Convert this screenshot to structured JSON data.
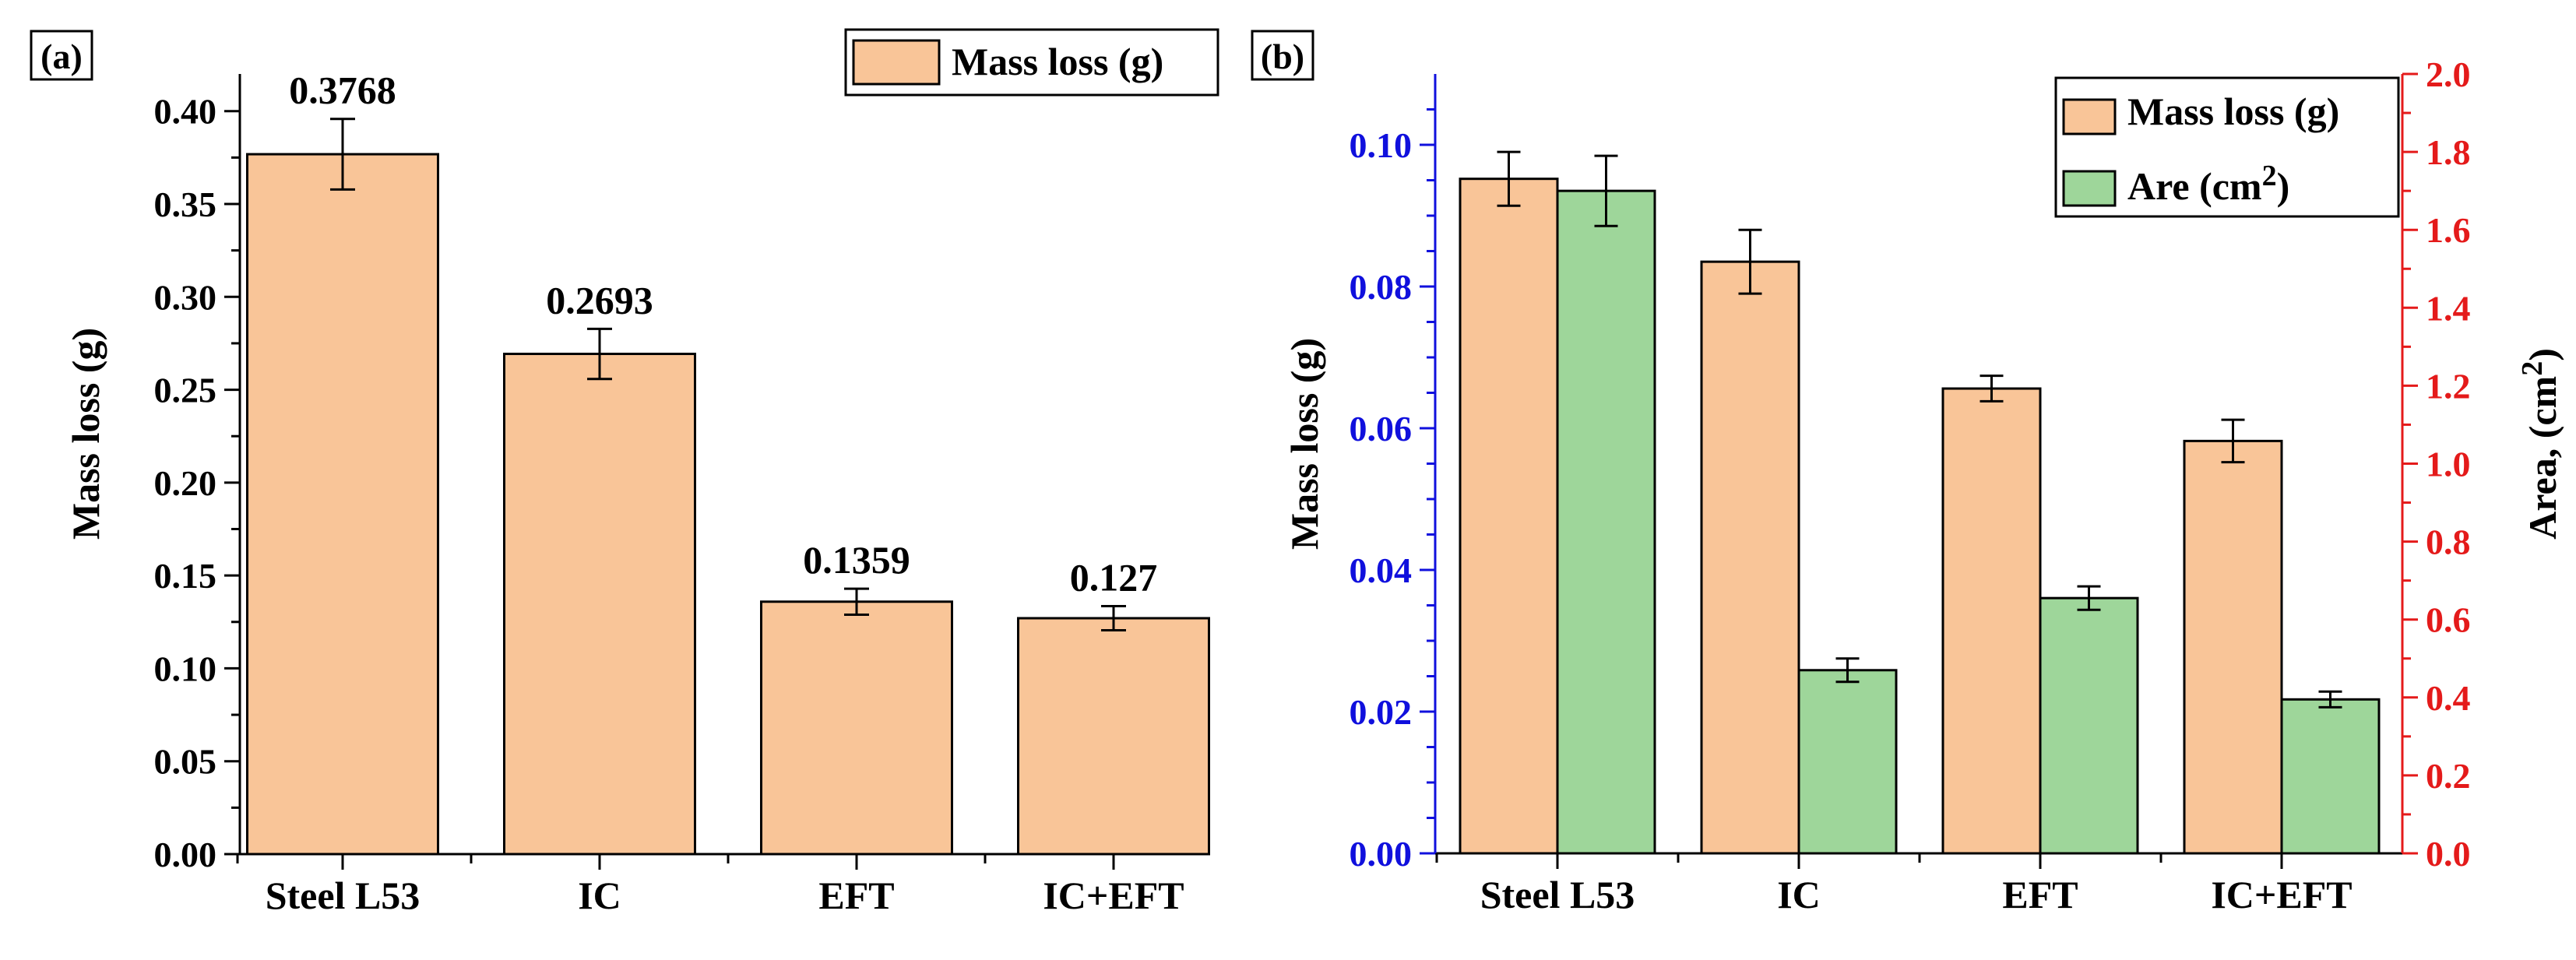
{
  "colors": {
    "mass_fill": "#F9C598",
    "area_fill": "#9ED69A",
    "left_axis_b": "#1010DD",
    "right_axis_b": "#E41A1A",
    "axis_black": "#000000"
  },
  "chart_data": [
    {
      "panel_label": "(a)",
      "type": "bar",
      "categories": [
        "Steel L53",
        "IC",
        "EFT",
        "IC+EFT"
      ],
      "series": [
        {
          "name": "Mass loss (g)",
          "values": [
            0.3768,
            0.2693,
            0.1359,
            0.127
          ],
          "errors": [
            0.019,
            0.0135,
            0.007,
            0.0065
          ],
          "labels": [
            "0.3768",
            "0.2693",
            "0.1359",
            "0.127"
          ]
        }
      ],
      "ylabel": "Mass loss (g)",
      "ylim": [
        0,
        0.42
      ],
      "yticks": [
        0.0,
        0.05,
        0.1,
        0.15,
        0.2,
        0.25,
        0.3,
        0.35,
        0.4
      ],
      "ytick_labels": [
        "0.00",
        "0.05",
        "0.10",
        "0.15",
        "0.20",
        "0.25",
        "0.30",
        "0.35",
        "0.40"
      ],
      "legend": [
        "Mass loss (g)"
      ],
      "legend_position": "top-right"
    },
    {
      "panel_label": "(b)",
      "type": "bar",
      "categories": [
        "Steel L53",
        "IC",
        "EFT",
        "IC+EFT"
      ],
      "series": [
        {
          "name": "Mass loss (g)",
          "axis": "left",
          "values": [
            0.0952,
            0.0835,
            0.0656,
            0.0582
          ],
          "errors": [
            0.0038,
            0.0045,
            0.0018,
            0.003
          ]
        },
        {
          "name": "Area",
          "legend_text": "Are (cm",
          "legend_sup": "2",
          "legend_close": ")",
          "axis": "right",
          "values": [
            1.7,
            0.47,
            0.655,
            0.395
          ],
          "errors": [
            0.09,
            0.03,
            0.03,
            0.02
          ]
        }
      ],
      "ylabel": "Mass loss (g)",
      "ylim": [
        0,
        0.11
      ],
      "yticks": [
        0.0,
        0.02,
        0.04,
        0.06,
        0.08,
        0.1
      ],
      "ytick_labels": [
        "0.00",
        "0.02",
        "0.04",
        "0.06",
        "0.08",
        "0.10"
      ],
      "y2label": "Area, (cm",
      "y2label_sup": "2",
      "y2label_close": ")",
      "y2lim": [
        0,
        2.0
      ],
      "y2ticks": [
        0.0,
        0.2,
        0.4,
        0.6,
        0.8,
        1.0,
        1.2,
        1.4,
        1.6,
        1.8,
        2.0
      ],
      "y2tick_labels": [
        "0.0",
        "0.2",
        "0.4",
        "0.6",
        "0.8",
        "1.0",
        "1.2",
        "1.4",
        "1.6",
        "1.8",
        "2.0"
      ],
      "legend_position": "top-right"
    }
  ]
}
